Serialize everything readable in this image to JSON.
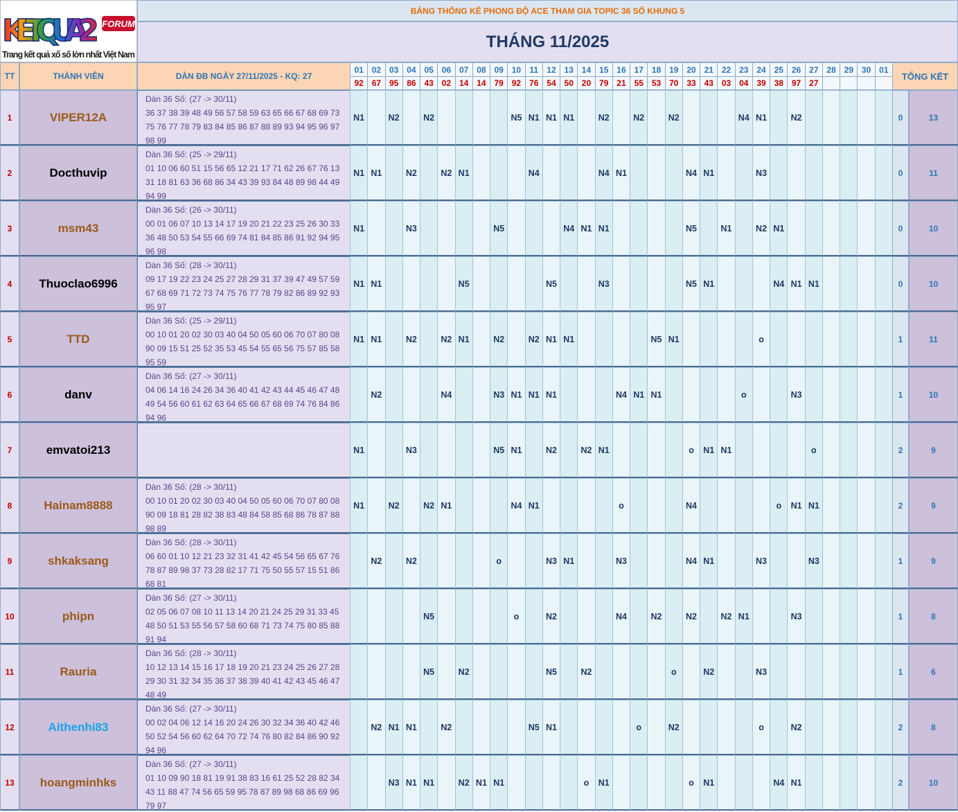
{
  "header": {
    "title": "BẢNG THỐNG KÊ PHONG ĐỘ ACE THAM GIA TOPIC 36 SỐ KHUNG 5",
    "month": "THÁNG 11/2025"
  },
  "logo": {
    "brand": "KETQUA2",
    "badge": "FORUM",
    "tagline": "Trang kết quả xổ số lớn nhất Việt Nam"
  },
  "columns": {
    "tt": "TT",
    "member": "THÀNH VIÊN",
    "dan": "DÀN ĐB NGÀY 27/11/2025 - KQ: 27",
    "summary": "TỔNG KẾT"
  },
  "days": [
    "01",
    "02",
    "03",
    "04",
    "05",
    "06",
    "07",
    "08",
    "09",
    "10",
    "11",
    "12",
    "13",
    "14",
    "15",
    "16",
    "17",
    "18",
    "19",
    "20",
    "21",
    "22",
    "23",
    "24",
    "25",
    "26",
    "27",
    "28",
    "29",
    "30",
    "01"
  ],
  "results": [
    "92",
    "67",
    "95",
    "86",
    "43",
    "02",
    "14",
    "14",
    "79",
    "92",
    "76",
    "54",
    "50",
    "20",
    "79",
    "21",
    "55",
    "53",
    "70",
    "33",
    "43",
    "03",
    "04",
    "39",
    "38",
    "97",
    "27",
    null,
    null,
    null,
    null
  ],
  "rows": [
    {
      "tt": 1,
      "name": "VIPER12A",
      "color": "#9c5a1a",
      "dan": [
        "Dàn 36 Số: (27 -> 30/11)",
        "36 37 38 39 48 49 56 57 58 59 63 65 66 67 68 69 73",
        "75 76 77 78 79 83 84 85 86 87 88 89 93 94 95 96 97",
        "98 99"
      ],
      "cells": [
        "N1",
        null,
        "N2",
        null,
        "N2",
        null,
        null,
        null,
        null,
        "N5",
        "N1",
        "N1",
        "N1",
        null,
        "N2",
        null,
        "N2",
        null,
        "N2",
        null,
        null,
        null,
        "N4",
        "N1",
        null,
        "N2",
        null,
        null,
        null,
        null,
        null
      ],
      "o_count": 0,
      "total": 13
    },
    {
      "tt": 2,
      "name": "Docthuvip",
      "color": "#000000",
      "dan": [
        "Dàn 36 Số: (25 -> 29/11)",
        "01 10 06 60 51 15 56 65 12 21 17 71 62 26 67 76 13",
        "31 18 81 63 36 68 86 34 43 39 93 84 48 89 98 44 49",
        "94 99"
      ],
      "cells": [
        "N1",
        "N1",
        null,
        "N2",
        null,
        "N2",
        "N1",
        null,
        null,
        null,
        "N4",
        null,
        null,
        null,
        "N4",
        "N1",
        null,
        null,
        null,
        "N4",
        "N1",
        null,
        null,
        "N3",
        null,
        null,
        null,
        null,
        null,
        null,
        null
      ],
      "o_count": 0,
      "total": 11
    },
    {
      "tt": 3,
      "name": "msm43",
      "color": "#9c5a1a",
      "dan": [
        "Dàn 36 Số: (26 -> 30/11)",
        "00 01 06 07 10 13 14 17 19 20 21 22 23 25 26 30 33",
        "36 48 50 53 54 55 66 69 74 81 84 85 86 91 92 94 95",
        "96 98"
      ],
      "cells": [
        "N1",
        null,
        null,
        "N3",
        null,
        null,
        null,
        null,
        "N5",
        null,
        null,
        null,
        "N4",
        "N1",
        "N1",
        null,
        null,
        null,
        null,
        "N5",
        null,
        "N1",
        null,
        "N2",
        "N1",
        null,
        null,
        null,
        null,
        null,
        null
      ],
      "o_count": 0,
      "total": 10
    },
    {
      "tt": 4,
      "name": "Thuoclao6996",
      "color": "#000000",
      "dan": [
        "Dàn 36 Số: (28 -> 30/11)",
        "09 17 19 22 23 24 25 27 28 29 31 37 39 47 49 57 59",
        "67 68 69 71 72 73 74 75 76 77 78 79 82 86 89 92 93",
        "95 97"
      ],
      "cells": [
        "N1",
        "N1",
        null,
        null,
        null,
        null,
        "N5",
        null,
        null,
        null,
        null,
        "N5",
        null,
        null,
        "N3",
        null,
        null,
        null,
        null,
        "N5",
        "N1",
        null,
        null,
        null,
        "N4",
        "N1",
        "N1",
        null,
        null,
        null,
        null
      ],
      "o_count": 0,
      "total": 10
    },
    {
      "tt": 5,
      "name": "TTD",
      "color": "#9c5a1a",
      "dan": [
        "Dàn 36 Số: (25 -> 29/11)",
        "00 10 01 20 02 30 03 40 04 50 05 60 06 70 07 80 08",
        "90 09 15 51 25 52 35 53 45 54 55 65 56 75 57 85 58",
        "95 59"
      ],
      "cells": [
        "N1",
        "N1",
        null,
        "N2",
        null,
        "N2",
        "N1",
        null,
        "N2",
        null,
        "N2",
        "N1",
        "N1",
        null,
        null,
        null,
        null,
        "N5",
        "N1",
        null,
        null,
        null,
        null,
        "o",
        null,
        null,
        null,
        null,
        null,
        null,
        null
      ],
      "o_count": 1,
      "total": 11
    },
    {
      "tt": 6,
      "name": "danv",
      "color": "#000000",
      "dan": [
        "Dàn 36 Số: (27 -> 30/11)",
        "04 06 14 16 24 26 34 36 40 41 42 43 44 45 46 47 48",
        "49 54 56 60 61 62 63 64 65 66 67 68 69 74 76 84 86",
        "94 96"
      ],
      "cells": [
        null,
        "N2",
        null,
        null,
        null,
        "N4",
        null,
        null,
        "N3",
        "N1",
        "N1",
        "N1",
        null,
        null,
        null,
        "N4",
        "N1",
        "N1",
        null,
        null,
        null,
        null,
        "o",
        null,
        null,
        "N3",
        null,
        null,
        null,
        null,
        null
      ],
      "o_count": 1,
      "total": 10
    },
    {
      "tt": 7,
      "name": "emvatoi213",
      "color": "#000000",
      "dan": [],
      "cells": [
        "N1",
        null,
        null,
        "N3",
        null,
        null,
        null,
        null,
        "N5",
        "N1",
        null,
        "N2",
        null,
        "N2",
        "N1",
        null,
        null,
        null,
        null,
        "o",
        "N1",
        "N1",
        null,
        null,
        null,
        null,
        "o",
        null,
        null,
        null,
        null
      ],
      "o_count": 2,
      "total": 9
    },
    {
      "tt": 8,
      "name": "Hainam8888",
      "color": "#9c5a1a",
      "dan": [
        "Dàn 36 Số: (28 -> 30/11)",
        "00 10 01 20 02 30 03 40 04 50 05 60 06 70 07 80 08",
        "90 09 18 81 28 82 38 83 48 84 58 85 68 86 78 87 88",
        "98 89"
      ],
      "cells": [
        "N1",
        null,
        "N2",
        null,
        "N2",
        "N1",
        null,
        null,
        null,
        "N4",
        "N1",
        null,
        null,
        null,
        null,
        "o",
        null,
        null,
        null,
        "N4",
        null,
        null,
        null,
        null,
        "o",
        "N1",
        "N1",
        null,
        null,
        null,
        null
      ],
      "o_count": 2,
      "total": 9
    },
    {
      "tt": 9,
      "name": "shkaksang",
      "color": "#9c5a1a",
      "dan": [
        "Dàn 36 Số: (28 -> 30/11)",
        "06 60 01 10 12 21 23 32 31 41 42 45 54 56 65 67 76",
        "78 87 89 98 37 73 28 82 17 71 75 50 55 57 15 51 86",
        "68 81"
      ],
      "cells": [
        null,
        "N2",
        null,
        "N2",
        null,
        null,
        null,
        null,
        "o",
        null,
        null,
        "N3",
        "N1",
        null,
        null,
        "N3",
        null,
        null,
        null,
        "N4",
        "N1",
        null,
        null,
        "N3",
        null,
        null,
        "N3",
        null,
        null,
        null,
        null
      ],
      "o_count": 1,
      "total": 9
    },
    {
      "tt": 10,
      "name": "phipn",
      "color": "#9c5a1a",
      "dan": [
        "Dàn 36 Số: (27 -> 30/11)",
        "02 05 06 07 08 10 11 13 14 20 21 24 25 29 31 33 45",
        "48 50 51 53 55 56 57 58 60 68 71 73 74 75 80 85 88",
        "91 94"
      ],
      "cells": [
        null,
        null,
        null,
        null,
        "N5",
        null,
        null,
        null,
        null,
        "o",
        null,
        "N2",
        null,
        null,
        null,
        "N4",
        null,
        "N2",
        null,
        "N2",
        null,
        "N2",
        "N1",
        null,
        null,
        "N3",
        null,
        null,
        null,
        null,
        null
      ],
      "o_count": 1,
      "total": 8
    },
    {
      "tt": 11,
      "name": "Rauria",
      "color": "#9c5a1a",
      "dan": [
        "Dàn 36 Số: (28 -> 30/11)",
        "10 12 13 14 15 16 17 18 19 20 21 23 24 25 26 27 28",
        "29 30 31 32 34 35 36 37 38 39 40 41 42 43 45 46 47",
        "48 49"
      ],
      "cells": [
        null,
        null,
        null,
        null,
        "N5",
        null,
        "N2",
        null,
        null,
        null,
        null,
        "N5",
        null,
        "N2",
        null,
        null,
        null,
        null,
        "o",
        null,
        "N2",
        null,
        null,
        "N3",
        null,
        null,
        null,
        null,
        null,
        null,
        null
      ],
      "o_count": 1,
      "total": 6
    },
    {
      "tt": 12,
      "name": "Aithenhi83",
      "color": "#1aa3e8",
      "dan": [
        "Dàn 36 Số: (27 -> 30/11)",
        "00 02 04 06 12 14 16 20 24 26 30 32 34 36 40 42 46",
        "50 52 54 56 60 62 64 70 72 74 76 80 82 84 86 90 92",
        "94 96"
      ],
      "cells": [
        null,
        "N2",
        "N1",
        "N1",
        null,
        "N2",
        null,
        null,
        null,
        null,
        "N5",
        "N1",
        null,
        null,
        null,
        null,
        "o",
        null,
        "N2",
        null,
        null,
        null,
        null,
        "o",
        null,
        "N2",
        null,
        null,
        null,
        null,
        null
      ],
      "o_count": 2,
      "total": 8
    },
    {
      "tt": 13,
      "name": "hoangminhks",
      "color": "#9c5a1a",
      "dan": [
        "Dàn 36 Số: (27 -> 30/11)",
        "01 10 09 90 18 81 19 91 38 83 16 61 25 52 28 82 34",
        "43 11 88 47 74 56 65 59 95 78 87 89 98 68 86 69 96",
        "79 97"
      ],
      "cells": [
        null,
        null,
        "N3",
        "N1",
        "N1",
        null,
        "N2",
        "N1",
        "N1",
        null,
        null,
        null,
        null,
        "o",
        "N1",
        null,
        null,
        null,
        null,
        "o",
        "N1",
        null,
        null,
        null,
        "N4",
        "N1",
        null,
        null,
        null,
        null,
        null
      ],
      "o_count": 2,
      "total": 10
    }
  ]
}
